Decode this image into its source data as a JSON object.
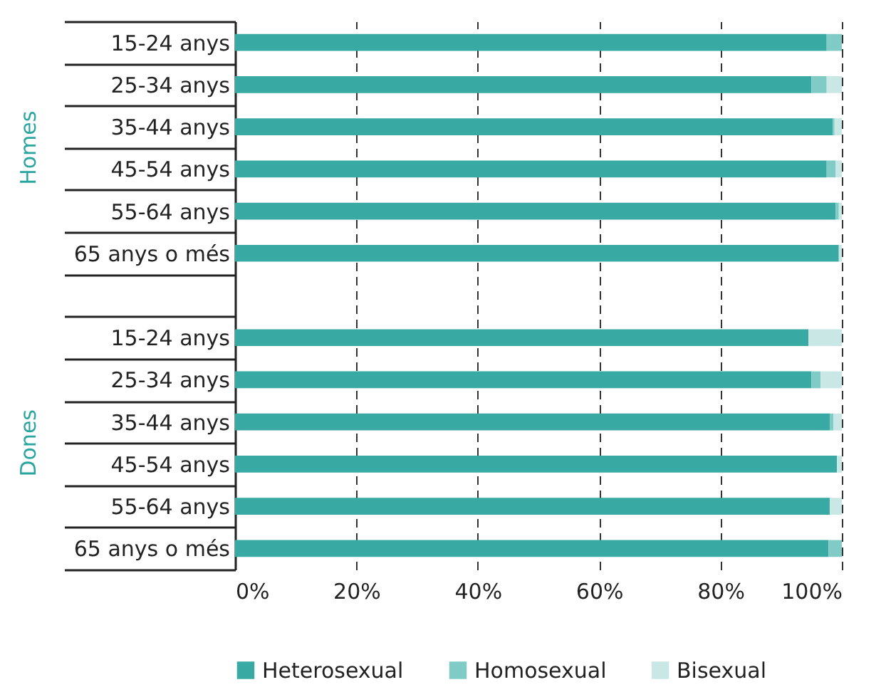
{
  "chart_data": {
    "type": "bar",
    "orientation": "horizontal",
    "stacked": true,
    "categories": [
      "15-24 anys",
      "25-34 anys",
      "35-44 anys",
      "45-54 anys",
      "55-64 anys",
      "65 anys o més",
      null,
      "15-24 anys",
      "25-34 anys",
      "35-44 anys",
      "45-54 anys",
      "55-64 anys",
      "65 anys o més"
    ],
    "series": [
      {
        "name": "Heterosexual",
        "color": "#38a9a3",
        "values": [
          97.5,
          95,
          98.5,
          97.5,
          99,
          99.5,
          null,
          94.5,
          95,
          98,
          99.2,
          98,
          97.8
        ]
      },
      {
        "name": "Homosexual",
        "color": "#80cbc5",
        "values": [
          2.5,
          2.5,
          0.3,
          1.5,
          0.5,
          0,
          null,
          0,
          1.5,
          0.6,
          0,
          0,
          2.2
        ]
      },
      {
        "name": "Bisexual",
        "color": "#c9e7e5",
        "values": [
          0,
          2.5,
          1.2,
          1,
          0.5,
          0.5,
          null,
          5.5,
          3.5,
          1.4,
          0.8,
          2,
          0
        ]
      }
    ],
    "xlim": [
      0,
      100
    ],
    "xticks": [
      {
        "value": 0,
        "label": "0%"
      },
      {
        "value": 20,
        "label": "20%"
      },
      {
        "value": 40,
        "label": "40%"
      },
      {
        "value": 60,
        "label": "60%"
      },
      {
        "value": 80,
        "label": "80%"
      },
      {
        "value": 100,
        "label": "100%"
      }
    ],
    "grid": "x",
    "legend": "bottom",
    "annotations": [
      "Homes",
      "Dones"
    ]
  }
}
